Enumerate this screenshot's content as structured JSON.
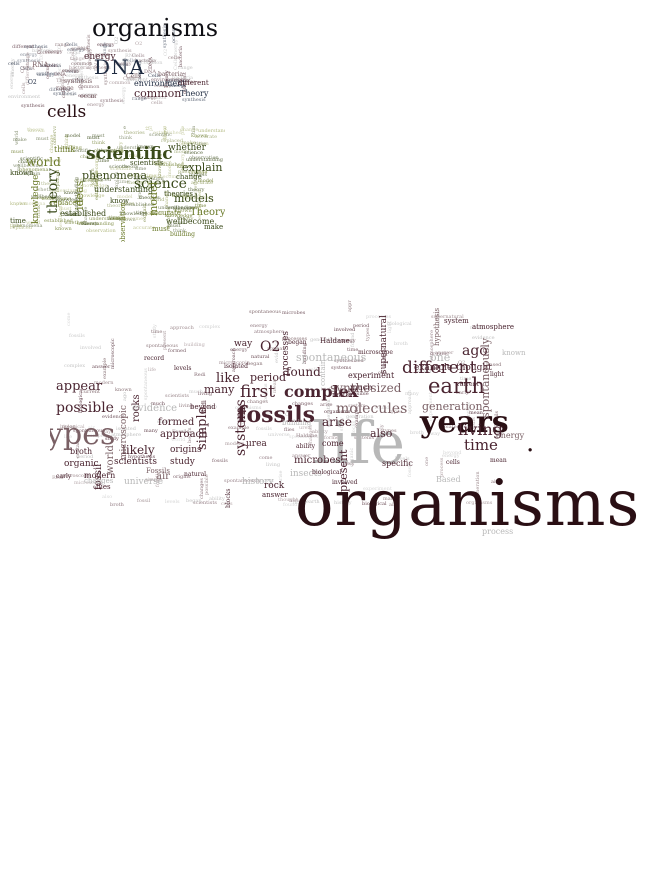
{
  "colors": {
    "dark_maroon": "#2a0f14",
    "maroon": "#4a2430",
    "mauve": "#7a6065",
    "light_gray": "#b8b8b8",
    "olive": "#6b7a2a",
    "dark_green": "#3a4a1a",
    "light_olive": "#a8b070",
    "navy": "#1e2a40"
  },
  "cloud_cells": {
    "title": "organisms",
    "words": [
      {
        "text": "DNA",
        "color": "navy"
      },
      {
        "text": "energy",
        "color": "maroon"
      },
      {
        "text": "environment",
        "color": "navy"
      },
      {
        "text": "common",
        "color": "maroon"
      },
      {
        "text": "different",
        "color": "maroon"
      },
      {
        "text": "Theory",
        "color": "navy"
      },
      {
        "text": "synthesis",
        "color": "mauve"
      },
      {
        "text": "occur",
        "color": "mauve"
      },
      {
        "text": "RNA",
        "color": "mauve"
      },
      {
        "text": "O2",
        "color": "navy"
      },
      {
        "text": "Cells",
        "color": "mauve"
      },
      {
        "text": "bacteria",
        "color": "mauve"
      },
      {
        "text": "range",
        "color": "mauve"
      },
      {
        "text": "cells",
        "color": "dark_maroon"
      }
    ]
  },
  "cloud_science": {
    "words": [
      {
        "text": "scientific",
        "color": "dark_green"
      },
      {
        "text": "science",
        "color": "dark_green"
      },
      {
        "text": "world",
        "color": "olive"
      },
      {
        "text": "theory",
        "color": "dark_green"
      },
      {
        "text": "explain",
        "color": "dark_green"
      },
      {
        "text": "models",
        "color": "dark_green"
      },
      {
        "text": "model",
        "color": "olive"
      },
      {
        "text": "phenomena",
        "color": "dark_green"
      },
      {
        "text": "ideas",
        "color": "olive"
      },
      {
        "text": "knowledge",
        "color": "olive"
      },
      {
        "text": "whether",
        "color": "dark_green"
      },
      {
        "text": "think",
        "color": "olive"
      },
      {
        "text": "understanding",
        "color": "dark_green"
      },
      {
        "text": "theories",
        "color": "dark_green"
      },
      {
        "text": "Theory",
        "color": "olive"
      },
      {
        "text": "established",
        "color": "dark_green"
      },
      {
        "text": "accurate",
        "color": "olive"
      },
      {
        "text": "wellbecome",
        "color": "dark_green"
      },
      {
        "text": "must",
        "color": "olive"
      },
      {
        "text": "make",
        "color": "dark_green"
      },
      {
        "text": "known",
        "color": "dark_green"
      },
      {
        "text": "time",
        "color": "dark_green"
      },
      {
        "text": "observation",
        "color": "olive"
      },
      {
        "text": "scientists",
        "color": "dark_green"
      },
      {
        "text": "change",
        "color": "dark_green"
      },
      {
        "text": "replaced",
        "color": "olive"
      },
      {
        "text": "building",
        "color": "olive"
      },
      {
        "text": "know",
        "color": "dark_green"
      }
    ]
  },
  "cloud_life": {
    "words": [
      {
        "text": "organisms",
        "color": "dark_maroon"
      },
      {
        "text": "life",
        "color": "light_gray"
      },
      {
        "text": "years",
        "color": "dark_maroon"
      },
      {
        "text": "types",
        "color": "mauve"
      },
      {
        "text": "fossils",
        "color": "maroon"
      },
      {
        "text": "earth",
        "color": "maroon"
      },
      {
        "text": "complex",
        "color": "maroon"
      },
      {
        "text": "first",
        "color": "maroon"
      },
      {
        "text": "different",
        "color": "maroon"
      },
      {
        "text": "living",
        "color": "maroon"
      },
      {
        "text": "time",
        "color": "maroon"
      },
      {
        "text": "molecules",
        "color": "mauve"
      },
      {
        "text": "generation",
        "color": "mauve"
      },
      {
        "text": "possible",
        "color": "maroon"
      },
      {
        "text": "appear",
        "color": "maroon"
      },
      {
        "text": "O2",
        "color": "maroon"
      },
      {
        "text": "found",
        "color": "maroon"
      },
      {
        "text": "period",
        "color": "maroon"
      },
      {
        "text": "ago",
        "color": "maroon"
      },
      {
        "text": "synthesized",
        "color": "mauve"
      },
      {
        "text": "spontaneous",
        "color": "light_gray"
      },
      {
        "text": "spontaneously",
        "color": "mauve"
      },
      {
        "text": "systems",
        "color": "maroon"
      },
      {
        "text": "likely",
        "color": "maroon"
      },
      {
        "text": "simple",
        "color": "maroon"
      },
      {
        "text": "arise",
        "color": "maroon"
      },
      {
        "text": "present",
        "color": "maroon"
      },
      {
        "text": "like",
        "color": "maroon"
      },
      {
        "text": "many",
        "color": "maroon"
      },
      {
        "text": "scientists",
        "color": "maroon"
      },
      {
        "text": "microbes",
        "color": "maroon"
      },
      {
        "text": "evidence",
        "color": "light_gray"
      },
      {
        "text": "formed",
        "color": "maroon"
      },
      {
        "text": "approach",
        "color": "maroon"
      },
      {
        "text": "rocks",
        "color": "maroon"
      },
      {
        "text": "origins",
        "color": "maroon"
      },
      {
        "text": "study",
        "color": "maroon"
      },
      {
        "text": "air",
        "color": "mauve"
      },
      {
        "text": "fossil",
        "color": "maroon"
      },
      {
        "text": "world",
        "color": "mauve"
      },
      {
        "text": "microscopic",
        "color": "mauve"
      },
      {
        "text": "universe",
        "color": "light_gray"
      },
      {
        "text": "organic",
        "color": "maroon"
      },
      {
        "text": "modern",
        "color": "maroon"
      },
      {
        "text": "broth",
        "color": "maroon"
      },
      {
        "text": "flies",
        "color": "maroon"
      },
      {
        "text": "history",
        "color": "light_gray"
      },
      {
        "text": "rock",
        "color": "maroon"
      },
      {
        "text": "answer",
        "color": "maroon"
      },
      {
        "text": "insects",
        "color": "light_gray"
      },
      {
        "text": "also",
        "color": "maroon"
      },
      {
        "text": "specific",
        "color": "maroon"
      },
      {
        "text": "process",
        "color": "light_gray"
      },
      {
        "text": "energy",
        "color": "mauve"
      },
      {
        "text": "example",
        "color": "maroon"
      },
      {
        "text": "thought",
        "color": "maroon"
      },
      {
        "text": "one",
        "color": "light_gray"
      },
      {
        "text": "Based",
        "color": "light_gray"
      },
      {
        "text": "experiment",
        "color": "maroon"
      },
      {
        "text": "much",
        "color": "maroon"
      },
      {
        "text": "matter",
        "color": "maroon"
      },
      {
        "text": "way",
        "color": "maroon"
      },
      {
        "text": "processes",
        "color": "maroon"
      },
      {
        "text": "urea",
        "color": "maroon"
      },
      {
        "text": "hypothesis",
        "color": "mauve"
      },
      {
        "text": "supernatural",
        "color": "maroon"
      },
      {
        "text": "atmosphere",
        "color": "maroon"
      },
      {
        "text": "system",
        "color": "maroon"
      },
      {
        "text": "known",
        "color": "light_gray"
      },
      {
        "text": "come",
        "color": "maroon"
      },
      {
        "text": "Fossils",
        "color": "mauve"
      },
      {
        "text": "cells",
        "color": "maroon"
      },
      {
        "text": "Redi",
        "color": "maroon"
      },
      {
        "text": "building",
        "color": "light_gray"
      },
      {
        "text": "blocks",
        "color": "maroon"
      },
      {
        "text": "early",
        "color": "maroon"
      },
      {
        "text": "changes",
        "color": "light_gray"
      },
      {
        "text": "beyond",
        "color": "maroon"
      },
      {
        "text": "natural",
        "color": "maroon"
      },
      {
        "text": "isolated",
        "color": "maroon"
      },
      {
        "text": "levels",
        "color": "maroon"
      },
      {
        "text": "record",
        "color": "maroon"
      },
      {
        "text": "began",
        "color": "maroon"
      },
      {
        "text": "Haldane",
        "color": "maroon"
      },
      {
        "text": "microscope",
        "color": "maroon"
      },
      {
        "text": "contain",
        "color": "light_gray"
      },
      {
        "text": "involved",
        "color": "maroon"
      },
      {
        "text": "ability",
        "color": "maroon"
      },
      {
        "text": "biological",
        "color": "maroon"
      },
      {
        "text": "current",
        "color": "maroon"
      },
      {
        "text": "light",
        "color": "maroon"
      },
      {
        "text": "mean",
        "color": "maroon"
      }
    ]
  }
}
